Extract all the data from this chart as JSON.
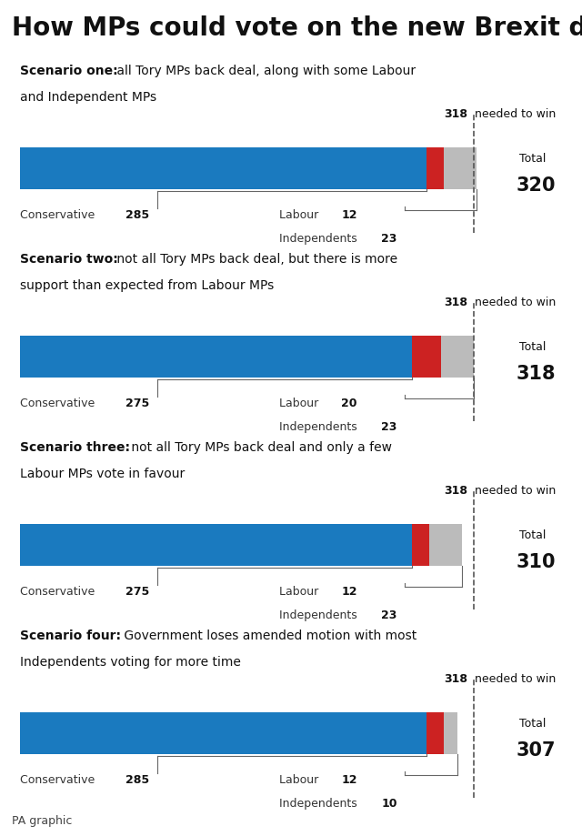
{
  "title": "How MPs could vote on the new Brexit deal",
  "title_fontsize": 20,
  "background_color": "#ffffff",
  "panel_bg_color": "#daeaf7",
  "needed_to_win": 318,
  "max_bar": 340,
  "blue_color": "#1a7abf",
  "red_color": "#cc2222",
  "gray_color": "#bbbbbb",
  "scenarios": [
    {
      "title_bold": "Scenario one:",
      "title_rest": " all Tory MPs back deal, along with some Labour\nand Independent MPs",
      "conservative": 285,
      "labour": 12,
      "independents": 23,
      "total": 320
    },
    {
      "title_bold": "Scenario two:",
      "title_rest": " not all Tory MPs back deal, but there is more\nsupport than expected from Labour MPs",
      "conservative": 275,
      "labour": 20,
      "independents": 23,
      "total": 318
    },
    {
      "title_bold": "Scenario three:",
      "title_rest": " not all Tory MPs back deal and only a few\nLabour MPs vote in favour",
      "conservative": 275,
      "labour": 12,
      "independents": 23,
      "total": 310
    },
    {
      "title_bold": "Scenario four:",
      "title_rest": " Government loses amended motion with most\nIndependents voting for more time",
      "conservative": 285,
      "labour": 12,
      "independents": 10,
      "total": 307
    }
  ]
}
